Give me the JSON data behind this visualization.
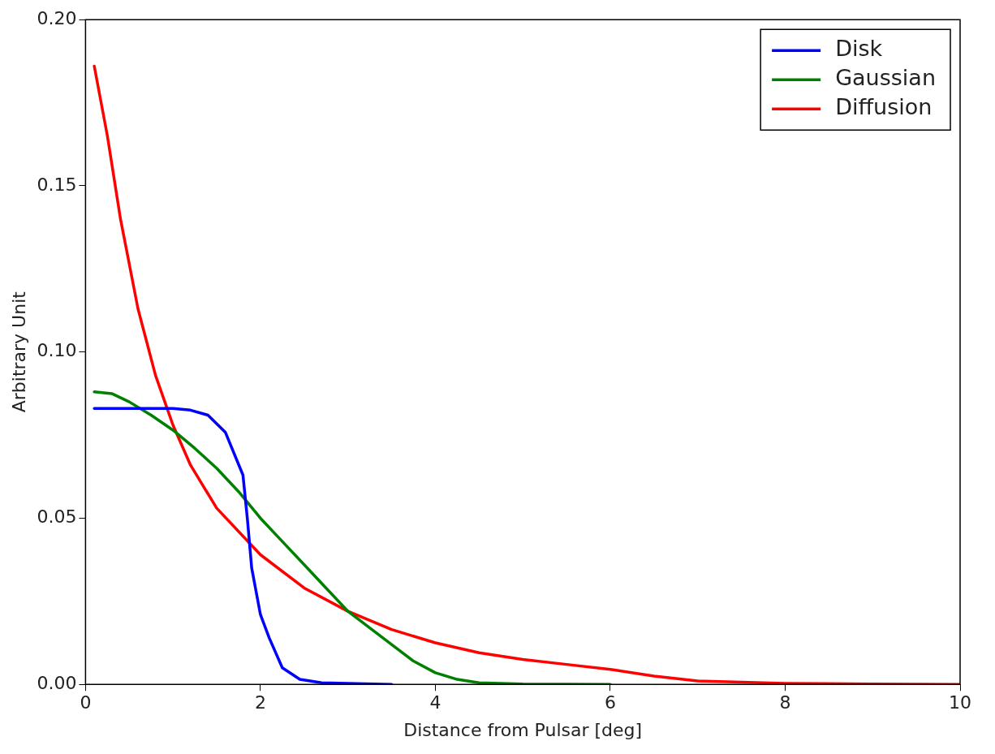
{
  "chart_data": {
    "type": "line",
    "xlabel": "Distance from Pulsar [deg]",
    "ylabel": "Arbitrary Unit",
    "xlim": [
      0,
      10
    ],
    "ylim": [
      0,
      0.2
    ],
    "xticks": [
      0,
      2,
      4,
      6,
      8,
      10
    ],
    "yticks": [
      {
        "value": 0,
        "label": "0.00"
      },
      {
        "value": 0.05,
        "label": "0.05"
      },
      {
        "value": 0.1,
        "label": "0.10"
      },
      {
        "value": 0.15,
        "label": "0.15"
      },
      {
        "value": 0.2,
        "label": "0.20"
      }
    ],
    "grid": false,
    "legend": "top right",
    "marker": "none",
    "line_style": "solid",
    "series": [
      {
        "name": "Disk",
        "color": "#0000ff",
        "x": [
          0.1,
          0.5,
          1.0,
          1.2,
          1.4,
          1.6,
          1.8,
          1.85,
          1.9,
          2.0,
          2.1,
          2.25,
          2.45,
          2.7,
          3.5
        ],
        "values": [
          0.083,
          0.083,
          0.083,
          0.0825,
          0.081,
          0.0758,
          0.063,
          0.05,
          0.035,
          0.021,
          0.014,
          0.005,
          0.0015,
          0.0005,
          0
        ]
      },
      {
        "name": "Gaussian",
        "color": "#008000",
        "x": [
          0.1,
          0.3,
          0.5,
          0.75,
          1.0,
          1.25,
          1.5,
          1.75,
          2.0,
          2.25,
          2.5,
          2.75,
          3.0,
          3.25,
          3.5,
          3.75,
          4.0,
          4.25,
          4.5,
          5.0,
          6.0
        ],
        "values": [
          0.088,
          0.0875,
          0.085,
          0.081,
          0.0765,
          0.071,
          0.065,
          0.058,
          0.05,
          0.043,
          0.036,
          0.029,
          0.022,
          0.017,
          0.012,
          0.007,
          0.0035,
          0.0015,
          0.0005,
          0.0001,
          0
        ]
      },
      {
        "name": "Diffusion",
        "color": "#ff0000",
        "x": [
          0.1,
          0.25,
          0.4,
          0.6,
          0.8,
          1.0,
          1.2,
          1.5,
          2.0,
          2.5,
          3.0,
          3.5,
          4.0,
          4.5,
          5.0,
          5.5,
          6.0,
          6.5,
          7.0,
          8.0,
          9.0,
          10
        ],
        "values": [
          0.186,
          0.165,
          0.14,
          0.113,
          0.093,
          0.078,
          0.066,
          0.053,
          0.039,
          0.029,
          0.022,
          0.0165,
          0.0125,
          0.0095,
          0.0075,
          0.006,
          0.0045,
          0.0025,
          0.001,
          0.0003,
          0.0001,
          0
        ]
      }
    ]
  }
}
